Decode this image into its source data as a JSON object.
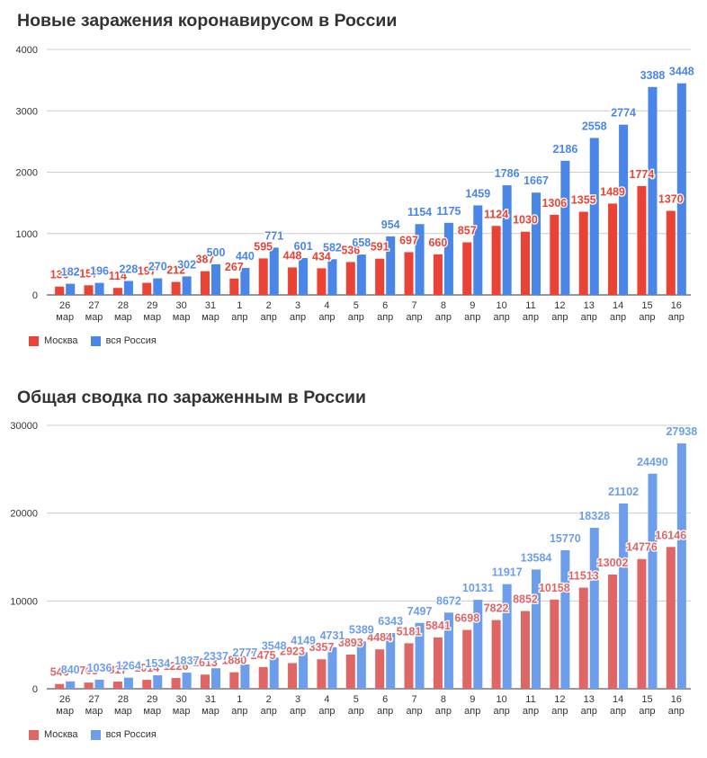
{
  "chart_data": [
    {
      "type": "bar",
      "title": "Новые заражения коронавирусом в России",
      "categories": [
        {
          "day": "26",
          "month": "мар"
        },
        {
          "day": "27",
          "month": "мар"
        },
        {
          "day": "28",
          "month": "мар"
        },
        {
          "day": "29",
          "month": "мар"
        },
        {
          "day": "30",
          "month": "мар"
        },
        {
          "day": "31",
          "month": "мар"
        },
        {
          "day": "1",
          "month": "апр"
        },
        {
          "day": "2",
          "month": "апр"
        },
        {
          "day": "3",
          "month": "апр"
        },
        {
          "day": "4",
          "month": "апр"
        },
        {
          "day": "5",
          "month": "апр"
        },
        {
          "day": "6",
          "month": "апр"
        },
        {
          "day": "7",
          "month": "апр"
        },
        {
          "day": "8",
          "month": "апр"
        },
        {
          "day": "9",
          "month": "апр"
        },
        {
          "day": "10",
          "month": "апр"
        },
        {
          "day": "11",
          "month": "апр"
        },
        {
          "day": "12",
          "month": "апр"
        },
        {
          "day": "13",
          "month": "апр"
        },
        {
          "day": "14",
          "month": "апр"
        },
        {
          "day": "15",
          "month": "апр"
        },
        {
          "day": "16",
          "month": "апр"
        }
      ],
      "series": [
        {
          "name": "Москва",
          "color": "#ea4335",
          "values": [
            136,
            157,
            114,
            197,
            212,
            387,
            267,
            595,
            448,
            434,
            536,
            591,
            697,
            660,
            857,
            1124,
            1030,
            1306,
            1355,
            1489,
            1774,
            1370
          ]
        },
        {
          "name": "вся Россия",
          "color": "#4a86e8",
          "values": [
            182,
            196,
            228,
            270,
            302,
            500,
            440,
            771,
            601,
            582,
            658,
            954,
            1154,
            1175,
            1459,
            1786,
            1667,
            2186,
            2558,
            2774,
            3388,
            3448
          ]
        }
      ],
      "yticks": [
        0,
        1000,
        2000,
        3000,
        4000
      ],
      "ylim": [
        0,
        4000
      ],
      "grid": true,
      "legend_position": "bottom-left"
    },
    {
      "type": "bar",
      "title": "Общая сводка по зараженным в России",
      "categories": [
        {
          "day": "26",
          "month": "мар"
        },
        {
          "day": "27",
          "month": "мар"
        },
        {
          "day": "28",
          "month": "мар"
        },
        {
          "day": "29",
          "month": "мар"
        },
        {
          "day": "30",
          "month": "мар"
        },
        {
          "day": "31",
          "month": "мар"
        },
        {
          "day": "1",
          "month": "апр"
        },
        {
          "day": "2",
          "month": "апр"
        },
        {
          "day": "3",
          "month": "апр"
        },
        {
          "day": "4",
          "month": "апр"
        },
        {
          "day": "5",
          "month": "апр"
        },
        {
          "day": "6",
          "month": "апр"
        },
        {
          "day": "7",
          "month": "апр"
        },
        {
          "day": "8",
          "month": "апр"
        },
        {
          "day": "9",
          "month": "апр"
        },
        {
          "day": "10",
          "month": "апр"
        },
        {
          "day": "11",
          "month": "апр"
        },
        {
          "day": "12",
          "month": "апр"
        },
        {
          "day": "13",
          "month": "апр"
        },
        {
          "day": "14",
          "month": "апр"
        },
        {
          "day": "15",
          "month": "апр"
        },
        {
          "day": "16",
          "month": "апр"
        }
      ],
      "series": [
        {
          "name": "Москва",
          "color": "#e06666",
          "values": [
            546,
            703,
            817,
            1014,
            1226,
            1613,
            1880,
            2475,
            2923,
            3357,
            3893,
            4484,
            5181,
            5841,
            6698,
            7822,
            8852,
            10158,
            11513,
            13002,
            14776,
            16146
          ]
        },
        {
          "name": "вся Россия",
          "color": "#6d9eeb",
          "values": [
            840,
            1036,
            1264,
            1534,
            1837,
            2337,
            2777,
            3548,
            4149,
            4731,
            5389,
            6343,
            7497,
            8672,
            10131,
            11917,
            13584,
            15770,
            18328,
            21102,
            24490,
            27938
          ]
        }
      ],
      "yticks": [
        0,
        10000,
        20000,
        30000
      ],
      "ylim": [
        0,
        30000
      ],
      "grid": true,
      "legend_position": "bottom-left"
    }
  ]
}
